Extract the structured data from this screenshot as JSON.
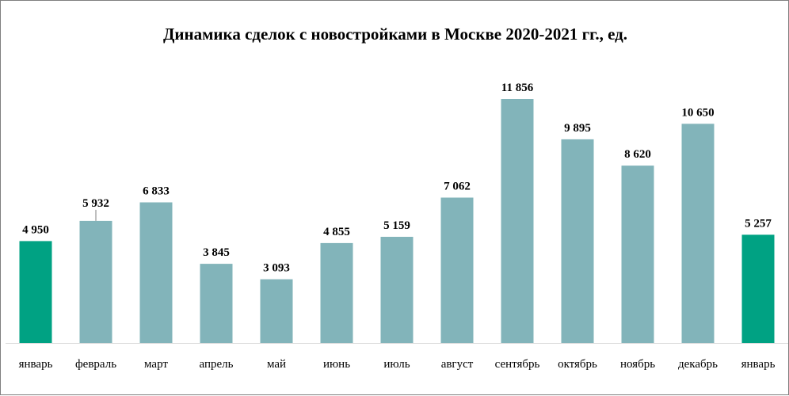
{
  "chart_data": {
    "type": "bar",
    "title": "Динамика сделок с новостройками в Москве 2020-2021 гг., ед.",
    "xlabel": "",
    "ylabel": "",
    "categories": [
      "январь",
      "февраль",
      "март",
      "апрель",
      "май",
      "июнь",
      "июль",
      "август",
      "сентябрь",
      "октябрь",
      "ноябрь",
      "декабрь",
      "январь"
    ],
    "values": [
      4950,
      5932,
      6833,
      3845,
      3093,
      4855,
      5159,
      7062,
      11856,
      9895,
      8620,
      10650,
      5257
    ],
    "value_labels": [
      "4 950",
      "5 932",
      "6 833",
      "3 845",
      "3 093",
      "4 855",
      "5 159",
      "7 062",
      "11 856",
      "9 895",
      "8 620",
      "10 650",
      "5 257"
    ],
    "bar_colors": [
      "#00a283",
      "#82b4ba",
      "#82b4ba",
      "#82b4ba",
      "#82b4ba",
      "#82b4ba",
      "#82b4ba",
      "#82b4ba",
      "#82b4ba",
      "#82b4ba",
      "#82b4ba",
      "#82b4ba",
      "#00a283"
    ],
    "ylim": [
      0,
      12500
    ],
    "grid": false,
    "axis_color": "#d9d9d9"
  }
}
